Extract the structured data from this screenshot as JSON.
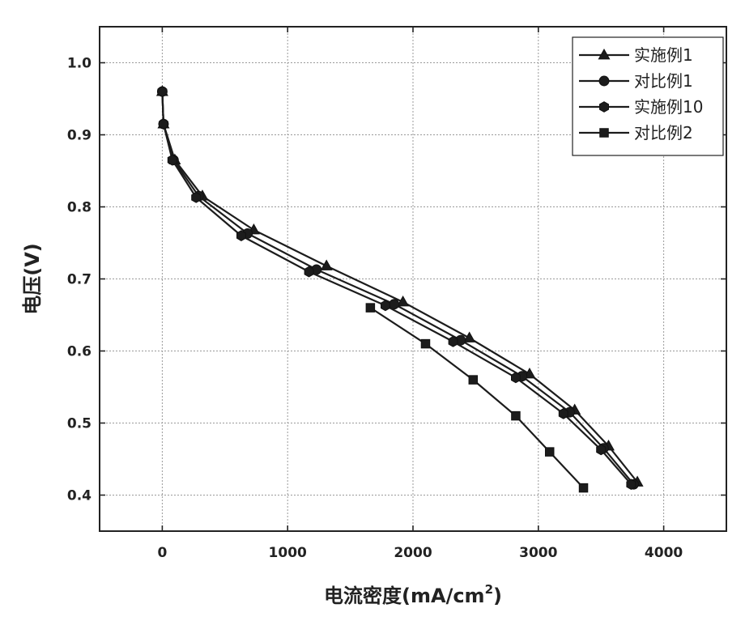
{
  "chart_data": {
    "type": "line",
    "title": "",
    "xlabel": "电流密度(mA/cm",
    "xlabel_superscript": "2",
    "xlabel_close": ")",
    "ylabel": "电压(V)",
    "xlim": [
      -500,
      4500
    ],
    "ylim": [
      0.35,
      1.05
    ],
    "xticks": [
      0,
      1000,
      2000,
      3000,
      4000
    ],
    "yticks": [
      0.4,
      0.5,
      0.6,
      0.7,
      0.8,
      0.9,
      1.0
    ],
    "xtick_labels": [
      "0",
      "1000",
      "2000",
      "3000",
      "4000"
    ],
    "ytick_labels": [
      "0.4",
      "0.5",
      "0.6",
      "0.7",
      "0.8",
      "0.9",
      "1.0"
    ],
    "grid": true,
    "legend_position": "top-right",
    "series": [
      {
        "name": "实施例1",
        "marker": "triangle",
        "x": [
          0,
          10,
          100,
          320,
          730,
          1310,
          1920,
          2450,
          2930,
          3290,
          3560,
          3790
        ],
        "y": [
          0.96,
          0.915,
          0.865,
          0.815,
          0.768,
          0.718,
          0.668,
          0.618,
          0.568,
          0.518,
          0.468,
          0.418
        ]
      },
      {
        "name": "对比例1",
        "marker": "circle",
        "x": [
          0,
          10,
          90,
          290,
          680,
          1230,
          1850,
          2380,
          2870,
          3250,
          3520,
          3760
        ],
        "y": [
          0.96,
          0.915,
          0.865,
          0.815,
          0.763,
          0.713,
          0.665,
          0.615,
          0.565,
          0.515,
          0.465,
          0.415
        ]
      },
      {
        "name": "实施例10",
        "marker": "hexagon",
        "x": [
          0,
          10,
          80,
          270,
          630,
          1170,
          1780,
          2320,
          2820,
          3200,
          3500,
          3740
        ],
        "y": [
          0.96,
          0.915,
          0.865,
          0.813,
          0.76,
          0.71,
          0.663,
          0.613,
          0.563,
          0.513,
          0.463,
          0.415
        ]
      },
      {
        "name": "对比例2",
        "marker": "square",
        "x": [
          1660,
          2100,
          2480,
          2820,
          3090,
          3360
        ],
        "y": [
          0.66,
          0.61,
          0.56,
          0.51,
          0.46,
          0.41
        ]
      }
    ]
  }
}
